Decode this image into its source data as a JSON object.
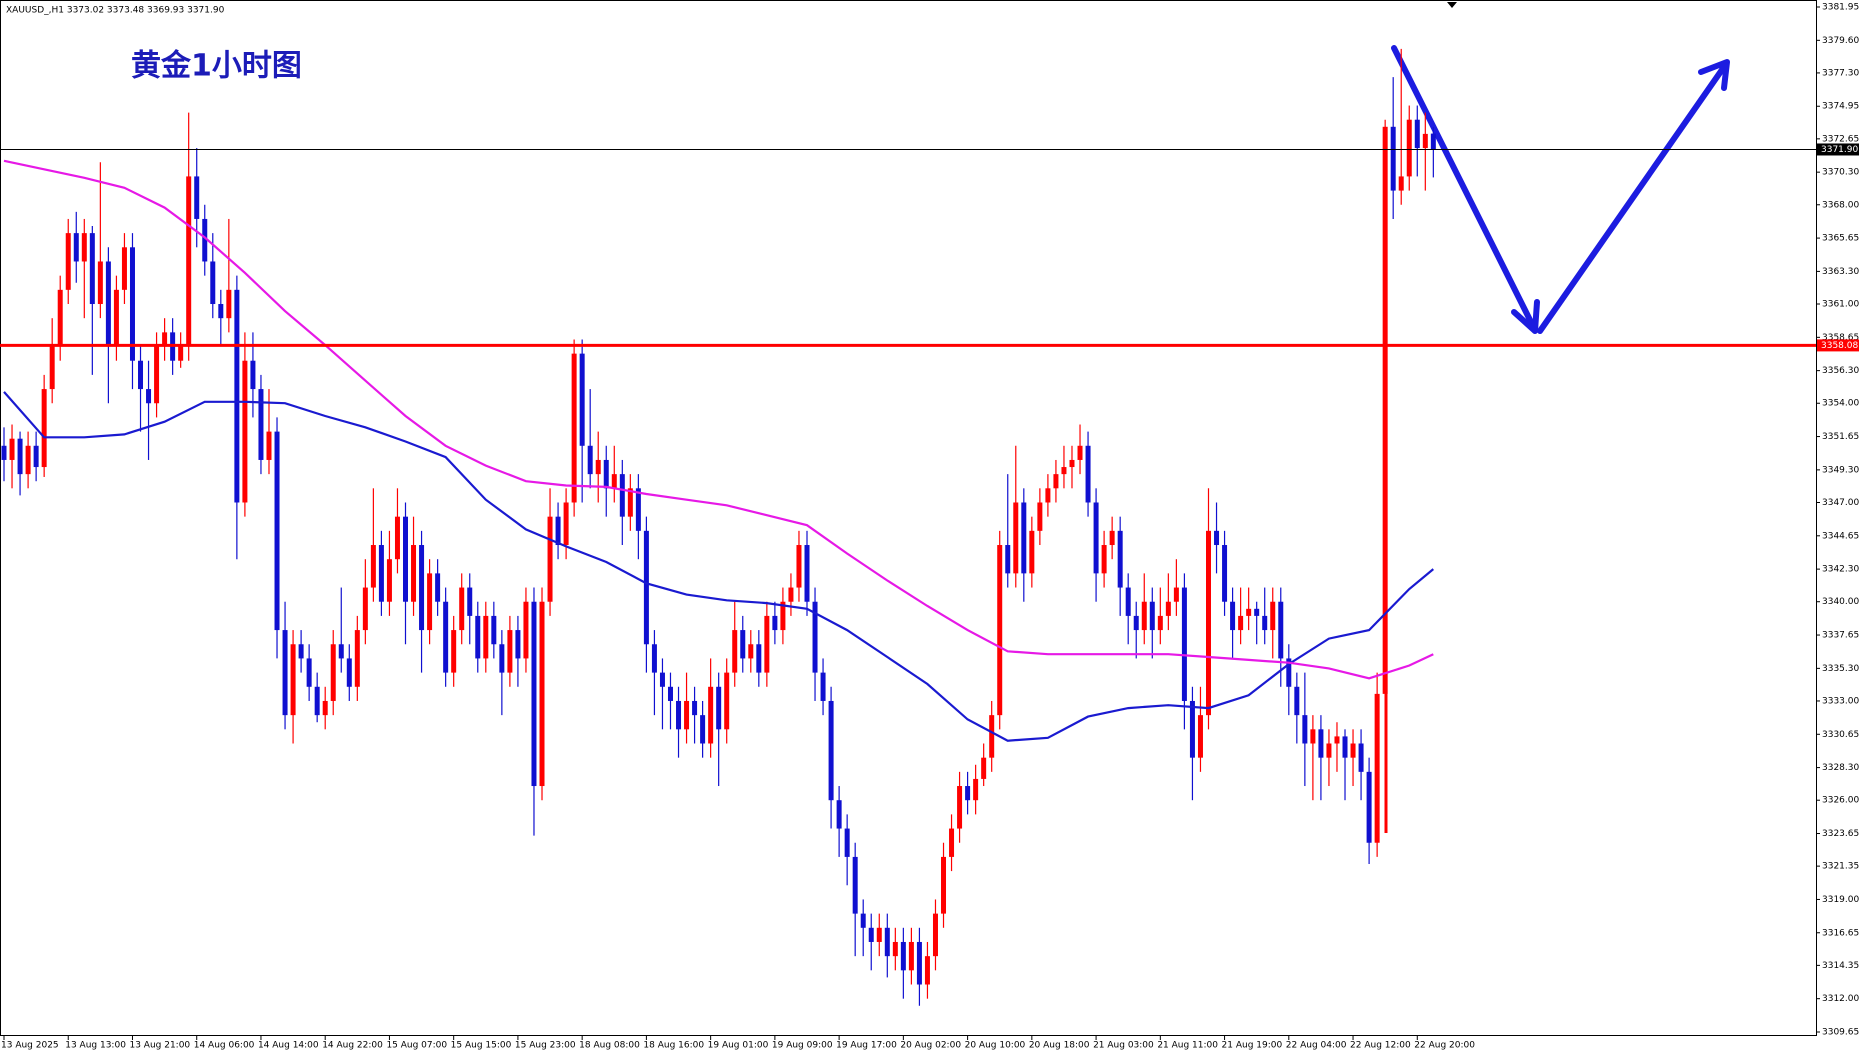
{
  "chart_data": {
    "type": "candlestick",
    "header": "XAUUSD_,H1  3373.02 3373.48 3369.93 3371.90",
    "title": "黄金1小时图",
    "up_color": "#ff0000",
    "down_color": "#1010d0",
    "categories": [
      "13 Aug 2025",
      null,
      null,
      null,
      null,
      null,
      null,
      null,
      "13 Aug 13:00",
      null,
      null,
      null,
      null,
      null,
      null,
      null,
      "13 Aug 21:00",
      null,
      null,
      null,
      null,
      null,
      null,
      null,
      "14 Aug 06:00",
      null,
      null,
      null,
      null,
      null,
      null,
      null,
      "14 Aug 14:00",
      null,
      null,
      null,
      null,
      null,
      null,
      null,
      "14 Aug 22:00",
      null,
      null,
      null,
      null,
      null,
      null,
      null,
      "15 Aug 07:00",
      null,
      null,
      null,
      null,
      null,
      null,
      null,
      "15 Aug 15:00",
      null,
      null,
      null,
      null,
      null,
      null,
      null,
      "15 Aug 23:00",
      null,
      null,
      null,
      null,
      null,
      null,
      null,
      "18 Aug 08:00",
      null,
      null,
      null,
      null,
      null,
      null,
      null,
      "18 Aug 16:00",
      null,
      null,
      null,
      null,
      null,
      null,
      null,
      "19 Aug 01:00",
      null,
      null,
      null,
      null,
      null,
      null,
      null,
      "19 Aug 09:00",
      null,
      null,
      null,
      null,
      null,
      null,
      null,
      "19 Aug 17:00",
      null,
      null,
      null,
      null,
      null,
      null,
      null,
      "20 Aug 02:00",
      null,
      null,
      null,
      null,
      null,
      null,
      null,
      "20 Aug 10:00",
      null,
      null,
      null,
      null,
      null,
      null,
      null,
      "20 Aug 18:00",
      null,
      null,
      null,
      null,
      null,
      null,
      null,
      "21 Aug 03:00",
      null,
      null,
      null,
      null,
      null,
      null,
      null,
      "21 Aug 11:00",
      null,
      null,
      null,
      null,
      null,
      null,
      null,
      "21 Aug 19:00",
      null,
      null,
      null,
      null,
      null,
      null,
      null,
      "22 Aug 04:00",
      null,
      null,
      null,
      null,
      null,
      null,
      null,
      "22 Aug 12:00",
      null,
      null,
      null,
      null,
      null,
      null,
      null,
      "22 Aug 20:00",
      null,
      null
    ],
    "ohlc": [
      [
        3351,
        3352.3,
        3348.5,
        3350
      ],
      [
        3350,
        3352.5,
        3348,
        3351.5
      ],
      [
        3351.5,
        3352,
        3347.5,
        3349
      ],
      [
        3349,
        3352,
        3348,
        3351
      ],
      [
        3351,
        3352,
        3348.5,
        3349.5
      ],
      [
        3349.5,
        3356,
        3348.8,
        3355
      ],
      [
        3355,
        3360,
        3354,
        3358
      ],
      [
        3358,
        3363,
        3357,
        3362
      ],
      [
        3362,
        3367,
        3361,
        3366
      ],
      [
        3366,
        3367.5,
        3362.5,
        3364
      ],
      [
        3364,
        3367,
        3360,
        3366
      ],
      [
        3366,
        3366.5,
        3356,
        3361
      ],
      [
        3361,
        3371,
        3360,
        3364
      ],
      [
        3364,
        3365,
        3354,
        3358
      ],
      [
        3358,
        3363,
        3357,
        3362
      ],
      [
        3362,
        3366,
        3361,
        3365
      ],
      [
        3365,
        3366,
        3355,
        3357
      ],
      [
        3357,
        3358,
        3352,
        3355
      ],
      [
        3355,
        3357,
        3350,
        3354
      ],
      [
        3354,
        3359,
        3353,
        3358
      ],
      [
        3358,
        3360,
        3357,
        3359
      ],
      [
        3359,
        3360,
        3356,
        3357
      ],
      [
        3357,
        3359,
        3356.5,
        3358
      ],
      [
        3358,
        3374.5,
        3357,
        3370
      ],
      [
        3370,
        3372,
        3365,
        3367
      ],
      [
        3367,
        3368,
        3363,
        3364
      ],
      [
        3364,
        3366,
        3360,
        3361
      ],
      [
        3361,
        3362,
        3358,
        3360
      ],
      [
        3360,
        3367,
        3359,
        3362
      ],
      [
        3362,
        3363,
        3343,
        3347
      ],
      [
        3347,
        3359,
        3346,
        3357
      ],
      [
        3357,
        3359,
        3353,
        3355
      ],
      [
        3355,
        3356,
        3349,
        3350
      ],
      [
        3350,
        3355,
        3349,
        3352
      ],
      [
        3352,
        3353,
        3336,
        3338
      ],
      [
        3338,
        3340,
        3331,
        3332
      ],
      [
        3332,
        3338,
        3330,
        3337
      ],
      [
        3337,
        3338,
        3335,
        3336
      ],
      [
        3336,
        3337,
        3333,
        3334
      ],
      [
        3334,
        3335,
        3331.5,
        3332
      ],
      [
        3332,
        3334,
        3331,
        3333
      ],
      [
        3333,
        3338,
        3332,
        3337
      ],
      [
        3337,
        3341,
        3335,
        3336
      ],
      [
        3336,
        3337,
        3333,
        3334
      ],
      [
        3334,
        3339,
        3333,
        3338
      ],
      [
        3338,
        3343,
        3337,
        3341
      ],
      [
        3341,
        3348,
        3340,
        3344
      ],
      [
        3344,
        3345,
        3339,
        3340
      ],
      [
        3340,
        3345,
        3339,
        3343
      ],
      [
        3343,
        3348,
        3342,
        3346
      ],
      [
        3346,
        3347,
        3337,
        3340
      ],
      [
        3340,
        3346,
        3339,
        3344
      ],
      [
        3344,
        3345,
        3335,
        3338
      ],
      [
        3338,
        3343,
        3337,
        3342
      ],
      [
        3342,
        3343,
        3339,
        3340
      ],
      [
        3340,
        3341,
        3334,
        3335
      ],
      [
        3335,
        3339,
        3334,
        3338
      ],
      [
        3338,
        3342,
        3337,
        3341
      ],
      [
        3341,
        3342,
        3337,
        3339
      ],
      [
        3339,
        3340,
        3335,
        3336
      ],
      [
        3336,
        3340,
        3335,
        3339
      ],
      [
        3339,
        3340,
        3336,
        3337
      ],
      [
        3337,
        3338,
        3332,
        3335
      ],
      [
        3335,
        3339,
        3334,
        3338
      ],
      [
        3338,
        3339,
        3334,
        3336
      ],
      [
        3336,
        3341,
        3335,
        3340
      ],
      [
        3340,
        3341,
        3323.5,
        3327
      ],
      [
        3327,
        3341,
        3326,
        3340
      ],
      [
        3340,
        3348,
        3339,
        3346
      ],
      [
        3346,
        3347,
        3343,
        3344
      ],
      [
        3344,
        3348,
        3343,
        3347
      ],
      [
        3347,
        3358.5,
        3346,
        3357.5
      ],
      [
        3357.5,
        3358.5,
        3347,
        3351
      ],
      [
        3351,
        3355,
        3348,
        3349
      ],
      [
        3349,
        3352,
        3347,
        3350
      ],
      [
        3350,
        3351,
        3346,
        3348
      ],
      [
        3348,
        3351,
        3347,
        3349
      ],
      [
        3349,
        3350,
        3344,
        3346
      ],
      [
        3346,
        3349,
        3345,
        3348
      ],
      [
        3348,
        3349,
        3343,
        3345
      ],
      [
        3345,
        3346,
        3335,
        3337
      ],
      [
        3337,
        3338,
        3332,
        3335
      ],
      [
        3335,
        3336,
        3331,
        3334
      ],
      [
        3334,
        3335,
        3331,
        3333
      ],
      [
        3333,
        3334,
        3329,
        3331
      ],
      [
        3331,
        3335,
        3330,
        3333
      ],
      [
        3333,
        3334,
        3330,
        3332
      ],
      [
        3332,
        3333,
        3329,
        3330
      ],
      [
        3330,
        3336,
        3329,
        3334
      ],
      [
        3334,
        3335,
        3327,
        3331
      ],
      [
        3331,
        3336,
        3330,
        3335
      ],
      [
        3335,
        3340,
        3334,
        3338
      ],
      [
        3338,
        3339,
        3335,
        3336
      ],
      [
        3336,
        3338,
        3335,
        3337
      ],
      [
        3337,
        3338,
        3334,
        3335
      ],
      [
        3335,
        3340,
        3334,
        3339
      ],
      [
        3339,
        3340,
        3337,
        3338
      ],
      [
        3338,
        3341,
        3337,
        3340
      ],
      [
        3340,
        3342,
        3339,
        3341
      ],
      [
        3341,
        3345,
        3340,
        3344
      ],
      [
        3344,
        3345,
        3339,
        3340
      ],
      [
        3340,
        3341,
        3333,
        3335
      ],
      [
        3335,
        3336,
        3332,
        3333
      ],
      [
        3333,
        3334,
        3324,
        3326
      ],
      [
        3326,
        3327,
        3322,
        3324
      ],
      [
        3324,
        3325,
        3320,
        3322
      ],
      [
        3322,
        3323,
        3315,
        3318
      ],
      [
        3318,
        3319,
        3315,
        3317
      ],
      [
        3317,
        3318,
        3314,
        3316
      ],
      [
        3316,
        3318,
        3315,
        3317
      ],
      [
        3317,
        3318,
        3313.5,
        3315
      ],
      [
        3315,
        3317,
        3314,
        3316
      ],
      [
        3316,
        3317,
        3312,
        3314
      ],
      [
        3314,
        3317,
        3313,
        3316
      ],
      [
        3316,
        3317,
        3311.5,
        3313
      ],
      [
        3313,
        3316,
        3312,
        3315
      ],
      [
        3315,
        3319,
        3314,
        3318
      ],
      [
        3318,
        3323,
        3317,
        3322
      ],
      [
        3322,
        3325,
        3321,
        3324
      ],
      [
        3324,
        3328,
        3323,
        3327
      ],
      [
        3327,
        3328,
        3325,
        3326
      ],
      [
        3326,
        3328.5,
        3325,
        3327.5
      ],
      [
        3327.5,
        3330,
        3327,
        3329
      ],
      [
        3329,
        3333,
        3328,
        3332
      ],
      [
        3332,
        3345,
        3331,
        3344
      ],
      [
        3344,
        3349,
        3341,
        3342
      ],
      [
        3342,
        3351,
        3341,
        3347
      ],
      [
        3347,
        3348,
        3340,
        3342
      ],
      [
        3342,
        3346,
        3341,
        3345
      ],
      [
        3345,
        3348,
        3344,
        3347
      ],
      [
        3347,
        3349,
        3346,
        3348
      ],
      [
        3348,
        3350,
        3347,
        3349
      ],
      [
        3349,
        3351,
        3348,
        3349.5
      ],
      [
        3349.5,
        3351,
        3348,
        3350
      ],
      [
        3350,
        3352.5,
        3349,
        3351
      ],
      [
        3351,
        3352,
        3346,
        3347
      ],
      [
        3347,
        3348,
        3340,
        3342
      ],
      [
        3342,
        3345,
        3341,
        3344
      ],
      [
        3344,
        3346,
        3343,
        3345
      ],
      [
        3345,
        3346,
        3339,
        3341
      ],
      [
        3341,
        3342,
        3337,
        3339
      ],
      [
        3339,
        3340,
        3336,
        3338
      ],
      [
        3338,
        3342,
        3337,
        3340
      ],
      [
        3340,
        3341,
        3336,
        3338
      ],
      [
        3338,
        3341,
        3337,
        3339
      ],
      [
        3339,
        3342,
        3338,
        3340
      ],
      [
        3340,
        3343,
        3339,
        3341
      ],
      [
        3341,
        3342,
        3331,
        3333
      ],
      [
        3333,
        3334,
        3326,
        3329
      ],
      [
        3329,
        3334,
        3328,
        3332
      ],
      [
        3332,
        3348,
        3331,
        3345
      ],
      [
        3345,
        3347,
        3342,
        3344
      ],
      [
        3344,
        3345,
        3339,
        3340
      ],
      [
        3340,
        3341,
        3336,
        3338
      ],
      [
        3338,
        3341,
        3337,
        3339
      ],
      [
        3339,
        3341,
        3338,
        3339.5
      ],
      [
        3339.5,
        3340,
        3337,
        3339
      ],
      [
        3339,
        3341,
        3337,
        3338
      ],
      [
        3338,
        3341,
        3336,
        3340
      ],
      [
        3340,
        3341,
        3334,
        3336
      ],
      [
        3336,
        3337,
        3332,
        3334
      ],
      [
        3334,
        3335,
        3330,
        3332
      ],
      [
        3332,
        3335,
        3327,
        3330
      ],
      [
        3330,
        3332,
        3326,
        3331
      ],
      [
        3331,
        3332,
        3326,
        3329
      ],
      [
        3329,
        3331,
        3327,
        3330
      ],
      [
        3330,
        3331.5,
        3328,
        3330.5
      ],
      [
        3330.5,
        3331,
        3326,
        3329
      ],
      [
        3329,
        3331,
        3327,
        3330
      ],
      [
        3330,
        3331,
        3326,
        3328
      ],
      [
        3328,
        3329,
        3321.5,
        3323
      ],
      [
        3323,
        3335,
        3322,
        3333.5
      ],
      [
        3333.5,
        3374,
        3333,
        3373.5
      ],
      [
        3373.5,
        3377,
        3367,
        3369
      ],
      [
        3369,
        3379,
        3368,
        3370
      ],
      [
        3370,
        3375,
        3369,
        3374
      ],
      [
        3374,
        3375,
        3370,
        3372
      ],
      [
        3372,
        3374.5,
        3369,
        3373
      ],
      [
        3373.02,
        3373.48,
        3369.93,
        3371.9
      ]
    ],
    "series": [
      {
        "color": "#1a1ad0",
        "x": [
          0,
          5,
          10,
          15,
          20,
          25,
          30,
          35,
          40,
          45,
          50,
          55,
          60,
          65,
          70,
          75,
          80,
          85,
          90,
          95,
          100,
          105,
          110,
          115,
          120,
          125,
          130,
          135,
          140,
          145,
          150,
          155,
          160,
          165,
          170,
          175,
          178
        ],
        "values": [
          3354.8,
          3351.6,
          3351.6,
          3351.8,
          3352.7,
          3354.1,
          3354.1,
          3354,
          3353.1,
          3352.3,
          3351.3,
          3350.2,
          3347.2,
          3345.1,
          3343.9,
          3342.8,
          3341.3,
          3340.5,
          3340.1,
          3339.9,
          3339.5,
          3338,
          3336.1,
          3334.2,
          3331.7,
          3330.2,
          3330.4,
          3331.9,
          3332.5,
          3332.7,
          3332.5,
          3333.4,
          3335.6,
          3337.4,
          3338,
          3340.9,
          3342.3
        ]
      },
      {
        "color": "#e619e6",
        "x": [
          0,
          5,
          10,
          15,
          20,
          25,
          30,
          35,
          40,
          45,
          50,
          55,
          60,
          65,
          70,
          75,
          80,
          85,
          90,
          95,
          100,
          105,
          110,
          115,
          120,
          125,
          130,
          135,
          140,
          145,
          150,
          155,
          160,
          165,
          170,
          175,
          178
        ],
        "values": [
          3371.1,
          3370.5,
          3369.9,
          3369.2,
          3367.8,
          3365.7,
          3363.2,
          3360.5,
          3358.1,
          3355.6,
          3353.1,
          3351,
          3349.6,
          3348.5,
          3348.2,
          3348.1,
          3347.6,
          3347.2,
          3346.8,
          3346.1,
          3345.4,
          3343.4,
          3341.5,
          3339.7,
          3338,
          3336.5,
          3336.3,
          3336.3,
          3336.3,
          3336.3,
          3336.1,
          3335.9,
          3335.7,
          3335.3,
          3334.6,
          3335.5,
          3336.3
        ]
      }
    ],
    "hlines": [
      {
        "value": 3371.9,
        "label": "3371.90",
        "color": "#000000"
      },
      {
        "value": 3358.08,
        "label": "3358.08",
        "color": "#ff0000"
      }
    ],
    "ylim": [
      3309.65,
      3381.95
    ],
    "yticks": [
      3381.95,
      {
        "value": 3379.6,
        "label": "3379.60"
      },
      {
        "value": 3377.3,
        "label": "3377.30"
      },
      3374.95,
      3372.65,
      {
        "value": 3370.3,
        "label": "3370.30"
      },
      {
        "value": 3368,
        "label": "3368.00"
      },
      3365.65,
      {
        "value": 3363.3,
        "label": "3363.30"
      },
      {
        "value": 3361,
        "label": "3361.00"
      },
      3358.65,
      {
        "value": 3356.3,
        "label": "3356.30"
      },
      {
        "value": 3354,
        "label": "3354.00"
      },
      3351.65,
      {
        "value": 3349.3,
        "label": "3349.30"
      },
      {
        "value": 3347,
        "label": "3347.00"
      },
      3344.65,
      {
        "value": 3342.3,
        "label": "3342.30"
      },
      {
        "value": 3340,
        "label": "3340.00"
      },
      3337.65,
      {
        "value": 3335.3,
        "label": "3335.30"
      },
      {
        "value": 3333,
        "label": "3333.00"
      },
      3330.65,
      {
        "value": 3328.3,
        "label": "3328.30"
      },
      {
        "value": 3326,
        "label": "3326.00"
      },
      3323.65,
      3321.35,
      {
        "value": 3319,
        "label": "3319.00"
      },
      3316.65,
      3314.35,
      {
        "value": 3312,
        "label": "3312.00"
      },
      3309.65
    ]
  }
}
